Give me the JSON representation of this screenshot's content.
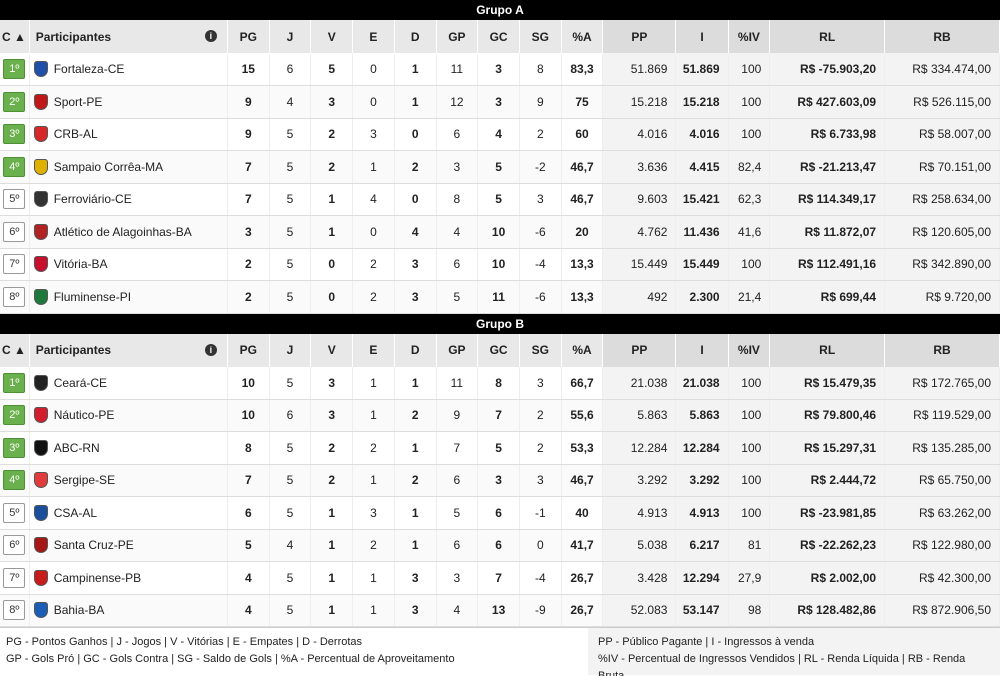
{
  "columns": [
    "C ▲",
    "Participantes",
    "PG",
    "J",
    "V",
    "E",
    "D",
    "GP",
    "GC",
    "SG",
    "%A",
    "PP",
    "I",
    "%IV",
    "RL",
    "RB"
  ],
  "groups": [
    {
      "title": "Grupo A",
      "rows": [
        {
          "pos": "1º",
          "q": true,
          "team": "Fortaleza-CE",
          "crest": "#1f4fa8",
          "pg": "15",
          "j": "6",
          "v": "5",
          "e": "0",
          "d": "1",
          "gp": "11",
          "gc": "3",
          "sg": "8",
          "a": "83,3",
          "pp": "51.869",
          "i": "51.869",
          "iv": "100",
          "rl": "R$ -75.903,20",
          "rb": "R$ 334.474,00"
        },
        {
          "pos": "2º",
          "q": true,
          "team": "Sport-PE",
          "crest": "#c01818",
          "pg": "9",
          "j": "4",
          "v": "3",
          "e": "0",
          "d": "1",
          "gp": "12",
          "gc": "3",
          "sg": "9",
          "a": "75",
          "pp": "15.218",
          "i": "15.218",
          "iv": "100",
          "rl": "R$ 427.603,09",
          "rb": "R$ 526.115,00"
        },
        {
          "pos": "3º",
          "q": true,
          "team": "CRB-AL",
          "crest": "#d62828",
          "pg": "9",
          "j": "5",
          "v": "2",
          "e": "3",
          "d": "0",
          "gp": "6",
          "gc": "4",
          "sg": "2",
          "a": "60",
          "pp": "4.016",
          "i": "4.016",
          "iv": "100",
          "rl": "R$ 6.733,98",
          "rb": "R$ 58.007,00"
        },
        {
          "pos": "4º",
          "q": true,
          "team": "Sampaio Corrêa-MA",
          "crest": "#e0b000",
          "pg": "7",
          "j": "5",
          "v": "2",
          "e": "1",
          "d": "2",
          "gp": "3",
          "gc": "5",
          "sg": "-2",
          "a": "46,7",
          "pp": "3.636",
          "i": "4.415",
          "iv": "82,4",
          "rl": "R$ -21.213,47",
          "rb": "R$ 70.151,00"
        },
        {
          "pos": "5º",
          "q": false,
          "team": "Ferroviário-CE",
          "crest": "#333333",
          "pg": "7",
          "j": "5",
          "v": "1",
          "e": "4",
          "d": "0",
          "gp": "8",
          "gc": "5",
          "sg": "3",
          "a": "46,7",
          "pp": "9.603",
          "i": "15.421",
          "iv": "62,3",
          "rl": "R$ 114.349,17",
          "rb": "R$ 258.634,00"
        },
        {
          "pos": "6º",
          "q": false,
          "team": "Atlético de Alagoinhas-BA",
          "crest": "#b22222",
          "pg": "3",
          "j": "5",
          "v": "1",
          "e": "0",
          "d": "4",
          "gp": "4",
          "gc": "10",
          "sg": "-6",
          "a": "20",
          "pp": "4.762",
          "i": "11.436",
          "iv": "41,6",
          "rl": "R$ 11.872,07",
          "rb": "R$ 120.605,00"
        },
        {
          "pos": "7º",
          "q": false,
          "team": "Vitória-BA",
          "crest": "#c8102e",
          "pg": "2",
          "j": "5",
          "v": "0",
          "e": "2",
          "d": "3",
          "gp": "6",
          "gc": "10",
          "sg": "-4",
          "a": "13,3",
          "pp": "15.449",
          "i": "15.449",
          "iv": "100",
          "rl": "R$ 112.491,16",
          "rb": "R$ 342.890,00"
        },
        {
          "pos": "8º",
          "q": false,
          "team": "Fluminense-PI",
          "crest": "#1e7a3c",
          "pg": "2",
          "j": "5",
          "v": "0",
          "e": "2",
          "d": "3",
          "gp": "5",
          "gc": "11",
          "sg": "-6",
          "a": "13,3",
          "pp": "492",
          "i": "2.300",
          "iv": "21,4",
          "rl": "R$ 699,44",
          "rb": "R$ 9.720,00"
        }
      ]
    },
    {
      "title": "Grupo B",
      "rows": [
        {
          "pos": "1º",
          "q": true,
          "team": "Ceará-CE",
          "crest": "#222222",
          "pg": "10",
          "j": "5",
          "v": "3",
          "e": "1",
          "d": "1",
          "gp": "11",
          "gc": "8",
          "sg": "3",
          "a": "66,7",
          "pp": "21.038",
          "i": "21.038",
          "iv": "100",
          "rl": "R$ 15.479,35",
          "rb": "R$ 172.765,00"
        },
        {
          "pos": "2º",
          "q": true,
          "team": "Náutico-PE",
          "crest": "#d11f2e",
          "pg": "10",
          "j": "6",
          "v": "3",
          "e": "1",
          "d": "2",
          "gp": "9",
          "gc": "7",
          "sg": "2",
          "a": "55,6",
          "pp": "5.863",
          "i": "5.863",
          "iv": "100",
          "rl": "R$ 79.800,46",
          "rb": "R$ 119.529,00"
        },
        {
          "pos": "3º",
          "q": true,
          "team": "ABC-RN",
          "crest": "#111111",
          "pg": "8",
          "j": "5",
          "v": "2",
          "e": "2",
          "d": "1",
          "gp": "7",
          "gc": "5",
          "sg": "2",
          "a": "53,3",
          "pp": "12.284",
          "i": "12.284",
          "iv": "100",
          "rl": "R$ 15.297,31",
          "rb": "R$ 135.285,00"
        },
        {
          "pos": "4º",
          "q": true,
          "team": "Sergipe-SE",
          "crest": "#e23b3b",
          "pg": "7",
          "j": "5",
          "v": "2",
          "e": "1",
          "d": "2",
          "gp": "6",
          "gc": "3",
          "sg": "3",
          "a": "46,7",
          "pp": "3.292",
          "i": "3.292",
          "iv": "100",
          "rl": "R$ 2.444,72",
          "rb": "R$ 65.750,00"
        },
        {
          "pos": "5º",
          "q": false,
          "team": "CSA-AL",
          "crest": "#1b4f9c",
          "pg": "6",
          "j": "5",
          "v": "1",
          "e": "3",
          "d": "1",
          "gp": "5",
          "gc": "6",
          "sg": "-1",
          "a": "40",
          "pp": "4.913",
          "i": "4.913",
          "iv": "100",
          "rl": "R$ -23.981,85",
          "rb": "R$ 63.262,00"
        },
        {
          "pos": "6º",
          "q": false,
          "team": "Santa Cruz-PE",
          "crest": "#a51616",
          "pg": "5",
          "j": "4",
          "v": "1",
          "e": "2",
          "d": "1",
          "gp": "6",
          "gc": "6",
          "sg": "0",
          "a": "41,7",
          "pp": "5.038",
          "i": "6.217",
          "iv": "81",
          "rl": "R$ -22.262,23",
          "rb": "R$ 122.980,00"
        },
        {
          "pos": "7º",
          "q": false,
          "team": "Campinense-PB",
          "crest": "#c81b1b",
          "pg": "4",
          "j": "5",
          "v": "1",
          "e": "1",
          "d": "3",
          "gp": "3",
          "gc": "7",
          "sg": "-4",
          "a": "26,7",
          "pp": "3.428",
          "i": "12.294",
          "iv": "27,9",
          "rl": "R$ 2.002,00",
          "rb": "R$ 42.300,00"
        },
        {
          "pos": "8º",
          "q": false,
          "team": "Bahia-BA",
          "crest": "#1c5db5",
          "pg": "4",
          "j": "5",
          "v": "1",
          "e": "1",
          "d": "3",
          "gp": "4",
          "gc": "13",
          "sg": "-9",
          "a": "26,7",
          "pp": "52.083",
          "i": "53.147",
          "iv": "98",
          "rl": "R$ 128.482,86",
          "rb": "R$ 872.906,50"
        }
      ]
    }
  ],
  "legend": {
    "left_line1": "PG - Pontos Ganhos | J - Jogos | V - Vitórias | E - Empates | D - Derrotas",
    "left_line2": "GP - Gols Pró | GC - Gols Contra | SG - Saldo de Gols | %A - Percentual de Aproveitamento",
    "right_line1": "PP - Público Pagante | I - Ingressos à venda",
    "right_line2": "%IV - Percentual de Ingressos Vendidos | RL - Renda Líquida | RB - Renda Bruta"
  },
  "info_icon": "info-icon"
}
